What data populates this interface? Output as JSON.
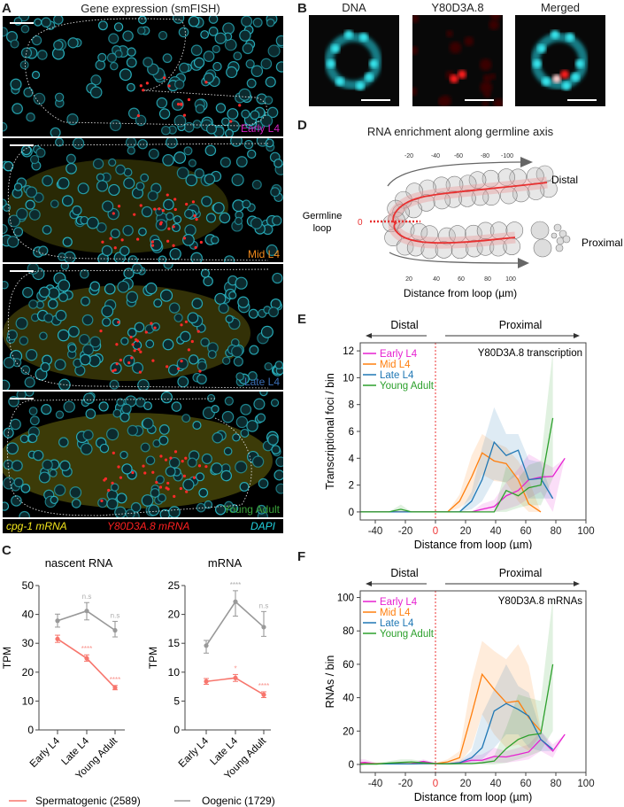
{
  "panels": {
    "A": {
      "letter": "A",
      "title": "Gene expression (smFISH)",
      "stages": [
        {
          "label": "Early L4",
          "color": "#d21fbf"
        },
        {
          "label": "Mid L4",
          "color": "#f08a1c"
        },
        {
          "label": "Late L4",
          "color": "#3b6fb6"
        },
        {
          "label": "Young Adult",
          "color": "#3aa23a"
        }
      ],
      "legend": [
        {
          "label": "cpg-1 mRNA",
          "color": "#f2e51c"
        },
        {
          "label": "Y80D3A.8 mRNA",
          "color": "#ff2020"
        },
        {
          "label": "DAPI",
          "color": "#22d3e0"
        }
      ]
    },
    "B": {
      "letter": "B",
      "titles": [
        "DNA",
        "Y80D3A.8",
        "Merged"
      ]
    },
    "C": {
      "letter": "C"
    },
    "D": {
      "letter": "D",
      "title": "RNA enrichment along germline axis",
      "distal_label": "Distal",
      "proximal_label": "Proximal",
      "loop_label_1": "Germline",
      "loop_label_2": "loop",
      "zero_label": "0",
      "top_ticks": [
        "-20",
        "-40",
        "-60",
        "-80",
        "-100"
      ],
      "bottom_ticks": [
        "20",
        "40",
        "60",
        "80",
        "100"
      ],
      "xlabel": "Distance from loop (µm)"
    },
    "E": {
      "letter": "E"
    },
    "F": {
      "letter": "F"
    }
  },
  "chart_data": [
    {
      "id": "C_nascent",
      "type": "line",
      "title": "nascent RNA",
      "ylabel": "TPM",
      "categories": [
        "Early L4",
        "Late L4",
        "Young Adult"
      ],
      "ylim": [
        0,
        50
      ],
      "yticks": [
        "0",
        "10",
        "20",
        "30",
        "40",
        "50"
      ],
      "series": [
        {
          "name": "Spermatogenic (2589)",
          "color": "#f7766d",
          "values": [
            31.5,
            24.8,
            14.6
          ],
          "err_lo": [
            30.3,
            23.8,
            13.9
          ],
          "err_hi": [
            32.8,
            26.0,
            15.4
          ],
          "annotations": [
            "",
            "****",
            "****"
          ]
        },
        {
          "name": "Oogenic (1729)",
          "color": "#999999",
          "values": [
            37.8,
            41.2,
            34.5
          ],
          "err_lo": [
            35.6,
            38.1,
            32.2
          ],
          "err_hi": [
            40.1,
            44.1,
            37.6
          ],
          "annotations": [
            "",
            "n.s",
            "n.s"
          ]
        }
      ]
    },
    {
      "id": "C_mrna",
      "type": "line",
      "title": "mRNA",
      "ylabel": "TPM",
      "categories": [
        "Early L4",
        "Late L4",
        "Young Adult"
      ],
      "ylim": [
        0,
        25
      ],
      "yticks": [
        "0",
        "5",
        "10",
        "15",
        "20",
        "25"
      ],
      "series": [
        {
          "name": "Spermatogenic (2589)",
          "color": "#f7766d",
          "values": [
            8.4,
            9.0,
            6.1
          ],
          "err_lo": [
            7.9,
            8.4,
            5.6
          ],
          "err_hi": [
            8.9,
            9.6,
            6.6
          ],
          "annotations": [
            "",
            "*",
            "****"
          ]
        },
        {
          "name": "Oogenic (1729)",
          "color": "#999999",
          "values": [
            14.6,
            22.2,
            17.8
          ],
          "err_lo": [
            13.3,
            19.7,
            16.2
          ],
          "err_hi": [
            15.5,
            24.1,
            20.5
          ],
          "annotations": [
            "",
            "****",
            "n.s"
          ]
        }
      ]
    },
    {
      "id": "E",
      "type": "line",
      "title": "Y80D3A.8 transcription",
      "xlabel": "Distance from loop (µm)",
      "ylabel": "Transcriptional foci / bin",
      "region_left": "Distal",
      "region_right": "Proximal",
      "xlim": [
        -50,
        100
      ],
      "ylim": [
        -0.6,
        12.6
      ],
      "xticks": [
        "-40",
        "-20",
        "0",
        "20",
        "40",
        "60",
        "80",
        "100"
      ],
      "yticks": [
        "0",
        "2",
        "4",
        "6",
        "8",
        "10",
        "12"
      ],
      "legend_position": "top-left",
      "x": [
        -50,
        -47,
        -39,
        -31,
        -23,
        -16,
        -8,
        0,
        8,
        16,
        24,
        31,
        39,
        47,
        55,
        62,
        70,
        78,
        86
      ],
      "series": [
        {
          "name": "Early L4",
          "color": "#e620d0",
          "values": [
            0,
            0,
            0,
            0,
            0,
            0,
            0,
            0,
            0,
            0,
            0,
            0.2,
            0.4,
            1.2,
            1.6,
            2.4,
            2.6,
            2.65,
            4.0
          ],
          "lo": [
            0,
            0,
            0,
            0,
            0,
            0,
            0,
            0,
            0,
            0,
            0,
            0,
            0,
            0.2,
            0.5,
            1.0,
            1.5,
            0,
            4.0
          ],
          "hi": [
            0,
            0,
            0,
            0,
            0,
            0,
            0,
            0,
            0,
            0,
            0,
            0.6,
            0.9,
            2.2,
            3.2,
            4.3,
            3.8,
            3.3,
            4.0
          ]
        },
        {
          "name": "Mid L4",
          "color": "#ff7f0e",
          "values": [
            0,
            0,
            0,
            0,
            0,
            0,
            0,
            0,
            0,
            0.8,
            2.6,
            4.4,
            3.8,
            3.6,
            2.4,
            0.6,
            0,
            null,
            null
          ],
          "lo": [
            0,
            0,
            0,
            0,
            0,
            0,
            0,
            0,
            0,
            0.3,
            1.0,
            2.8,
            2.3,
            2.2,
            0.8,
            0,
            0,
            null,
            null
          ],
          "hi": [
            0,
            0,
            0,
            0,
            0,
            0,
            0,
            0,
            0,
            1.3,
            4.2,
            5.8,
            5.2,
            4.8,
            3.8,
            2.4,
            0,
            null,
            null
          ]
        },
        {
          "name": "Late L4",
          "color": "#1f77b4",
          "values": [
            0,
            0,
            0,
            0,
            0,
            0,
            0,
            0,
            0,
            0,
            0.8,
            2.4,
            5.2,
            4.2,
            4.6,
            2.4,
            2.5,
            1.0,
            null
          ],
          "lo": [
            0,
            0,
            0,
            0,
            0,
            0,
            0,
            0,
            0,
            0,
            0.2,
            0.8,
            2.4,
            2.2,
            2.8,
            1.0,
            1.0,
            1.0,
            null
          ],
          "hi": [
            0,
            0,
            0,
            0,
            0,
            0,
            0,
            0,
            0,
            0,
            1.5,
            4.8,
            7.8,
            5.8,
            5.8,
            3.9,
            3.7,
            1.0,
            null
          ]
        },
        {
          "name": "Young Adult",
          "color": "#2ca02c",
          "values": [
            0,
            0,
            0,
            0,
            0.2,
            0,
            0,
            0,
            0,
            0,
            0,
            0,
            0,
            1.6,
            1.2,
            1.8,
            2.0,
            7.0,
            null
          ],
          "lo": [
            0,
            0,
            0,
            0,
            0,
            0,
            0,
            0,
            0,
            0,
            0,
            0,
            0,
            0,
            0.3,
            0.5,
            0.5,
            2.5,
            null
          ],
          "hi": [
            0,
            0,
            0,
            0,
            0.55,
            0,
            0,
            0,
            0,
            0,
            0,
            0,
            0,
            3.4,
            2.5,
            3.5,
            3.8,
            12.0,
            null
          ]
        }
      ]
    },
    {
      "id": "F",
      "type": "line",
      "title": "Y80D3A.8 mRNAs",
      "xlabel": "Distance from loop (µm)",
      "ylabel": "RNAs / bin",
      "region_left": "Distal",
      "region_right": "Proximal",
      "xlim": [
        -50,
        100
      ],
      "ylim": [
        -4.8,
        104
      ],
      "xticks": [
        "-40",
        "-20",
        "0",
        "20",
        "40",
        "60",
        "80",
        "100"
      ],
      "yticks": [
        "0",
        "20",
        "40",
        "60",
        "80",
        "100"
      ],
      "legend_position": "top-left",
      "x": [
        -50,
        -47,
        -39,
        -31,
        -23,
        -16,
        -8,
        0,
        8,
        16,
        24,
        31,
        39,
        47,
        55,
        62,
        70,
        78,
        86
      ],
      "series": [
        {
          "name": "Early L4",
          "color": "#e620d0",
          "values": [
            1,
            1.2,
            0.3,
            0.5,
            0.3,
            0.5,
            1.8,
            0.5,
            0.3,
            1,
            2.5,
            2.5,
            4.8,
            4.5,
            6,
            7.5,
            15,
            8,
            18
          ],
          "lo": [
            0,
            0,
            0,
            0,
            0,
            0,
            0.5,
            0,
            0,
            0,
            0.5,
            0.5,
            1,
            1,
            2,
            3,
            8,
            4,
            18
          ],
          "hi": [
            3,
            3,
            1,
            1,
            1,
            1,
            3,
            1,
            1,
            2,
            5,
            6,
            10,
            8,
            10,
            12,
            20,
            12,
            18
          ]
        },
        {
          "name": "Mid L4",
          "color": "#ff7f0e",
          "values": [
            0.5,
            0.5,
            0.5,
            0.5,
            0.3,
            0.5,
            0.5,
            0.5,
            1.5,
            4,
            30,
            54,
            45,
            37,
            38,
            28,
            20,
            null,
            null
          ],
          "lo": [
            0,
            0,
            0,
            0,
            0,
            0,
            0,
            0,
            0.5,
            1,
            10,
            30,
            18,
            10,
            12,
            8,
            18,
            null,
            null
          ],
          "hi": [
            1,
            1,
            1,
            1,
            1,
            1,
            1,
            1,
            3,
            8,
            50,
            74,
            68,
            63,
            72,
            59,
            21,
            null,
            null
          ]
        },
        {
          "name": "Late L4",
          "color": "#1f77b4",
          "values": [
            0.3,
            0.3,
            0.3,
            0.3,
            0.3,
            0.3,
            0.5,
            0.5,
            0.3,
            1,
            4,
            10,
            32,
            36.5,
            33,
            29,
            15,
            9,
            null
          ],
          "lo": [
            0,
            0,
            0,
            0,
            0,
            0,
            0,
            0,
            0,
            0,
            1,
            3,
            10,
            18,
            18,
            10,
            8,
            8,
            null
          ],
          "hi": [
            1,
            1,
            1,
            1,
            1,
            1,
            1,
            1,
            1,
            2,
            8,
            30,
            45,
            60,
            47,
            43,
            20,
            10,
            null
          ]
        },
        {
          "name": "Young Adult",
          "color": "#2ca02c",
          "values": [
            0,
            0.2,
            0.2,
            0.8,
            1.2,
            1.5,
            1,
            0.5,
            0.3,
            0.5,
            0.5,
            1,
            2,
            9.5,
            15,
            17.5,
            18.5,
            60,
            null
          ],
          "lo": [
            0,
            0,
            0,
            0,
            0,
            0,
            0,
            0,
            0,
            0,
            0,
            0,
            0,
            1,
            3,
            5,
            8,
            20,
            null
          ],
          "hi": [
            1,
            1,
            1,
            2,
            3,
            3,
            2,
            1,
            1,
            1,
            1,
            2,
            5,
            22,
            42,
            40,
            38,
            100,
            null
          ]
        }
      ]
    }
  ]
}
